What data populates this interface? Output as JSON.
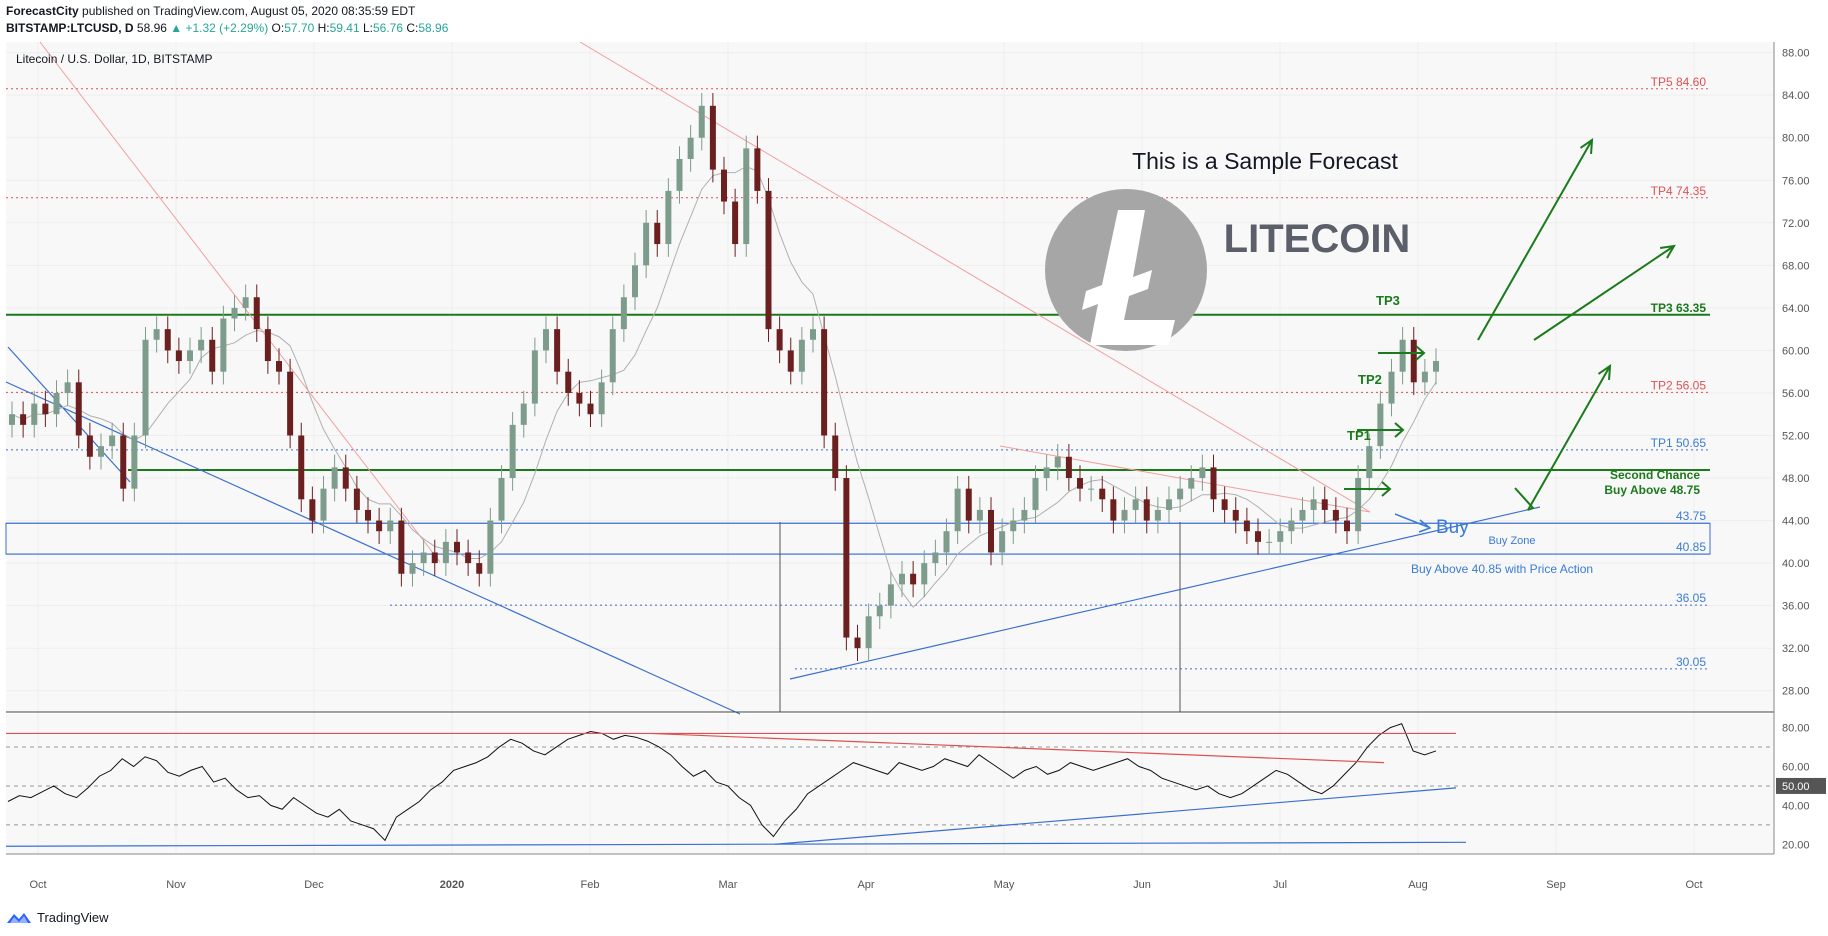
{
  "header": {
    "author": "ForecastCity",
    "published_text": "published on TradingView.com, August 05, 2020 08:35:59 EDT",
    "symbol": "BITSTAMP:LTCUSD, D",
    "last": "58.96",
    "change": "▲ +1.32 (+2.29%)",
    "o_label": "O:",
    "o_value": "57.70",
    "h_label": "H:",
    "h_value": "59.41",
    "l_label": "L:",
    "l_value": "56.76",
    "c_label": "C:",
    "c_value": "58.96"
  },
  "footer": {
    "brand": "TradingView"
  },
  "colors": {
    "up": "#7d9c8c",
    "down": "#6b1f1f",
    "green": "#1b7a1b",
    "red": "#e05050",
    "blue": "#2962ff",
    "trendblue": "#3a6fcf",
    "grey": "#b0b0b0",
    "pink": "#f0a0a0"
  },
  "chart_data": [
    {
      "type": "candlestick",
      "title": "Litecoin / U.S. Dollar, 1D, BITSTAMP",
      "xlabel": "",
      "ylabel": "",
      "x_ticks": [
        "Oct",
        "Nov",
        "Dec",
        "2020",
        "Feb",
        "Mar",
        "Apr",
        "May",
        "Jun",
        "Jul",
        "Aug",
        "Sep",
        "Oct"
      ],
      "y_ticks": [
        "88.00",
        "84.00",
        "80.00",
        "76.00",
        "72.00",
        "68.00",
        "64.00",
        "60.00",
        "56.00",
        "52.00",
        "48.00",
        "44.00",
        "40.00",
        "36.00",
        "32.00",
        "28.00"
      ],
      "ylim": [
        26,
        89
      ],
      "grid": true,
      "watermark_title": "This is a Sample Forecast",
      "watermark_brand": "LITECOIN",
      "levels": [
        {
          "label": "TP5 84.60",
          "value": 84.6,
          "style": "red-dotted"
        },
        {
          "label": "TP4 74.35",
          "value": 74.35,
          "style": "red-dotted"
        },
        {
          "label": "TP3 63.35",
          "value": 63.35,
          "style": "green-solid"
        },
        {
          "label": "TP2 56.05",
          "value": 56.05,
          "style": "red-dotted"
        },
        {
          "label": "TP1 50.65",
          "value": 50.65,
          "style": "blue-dotted"
        },
        {
          "label": "",
          "value": 48.75,
          "style": "green-solid"
        },
        {
          "label": "43.75",
          "value": 43.75,
          "style": "blue-solid"
        },
        {
          "label": "40.85",
          "value": 40.85,
          "style": "blue-solid"
        },
        {
          "label": "36.05",
          "value": 36.05,
          "style": "blue-dotted"
        },
        {
          "label": "30.05",
          "value": 30.05,
          "style": "blue-dotted"
        }
      ],
      "annotations": {
        "tp1": "TP1",
        "tp2": "TP2",
        "tp3": "TP3",
        "second_chance_1": "Second Chance",
        "second_chance_2": "Buy Above 48.75",
        "buy": "Buy",
        "buy_zone": "Buy Zone",
        "buy_above": "Buy Above  40.85 with Price Action"
      },
      "series": [
        {
          "ohlc_close_approx": [
            54,
            53,
            55,
            54,
            56,
            57,
            52,
            50,
            51,
            52,
            47,
            52,
            61,
            62,
            60,
            59,
            60,
            61,
            58,
            63,
            64,
            65,
            62,
            59,
            58,
            52,
            46,
            44,
            47,
            49,
            47,
            45,
            44,
            43,
            44,
            39,
            40,
            41,
            40,
            42,
            41,
            40,
            39,
            44,
            48,
            53,
            55,
            60,
            62,
            58,
            56,
            55,
            54,
            57,
            62,
            65,
            68,
            72,
            70,
            75,
            78,
            80,
            83,
            77,
            74,
            70,
            79,
            75,
            62,
            60,
            58,
            61,
            62,
            52,
            48,
            33,
            32,
            35,
            36,
            38,
            39,
            38,
            40,
            41,
            43,
            47,
            44,
            45,
            41,
            43,
            44,
            45,
            48,
            49,
            50,
            48,
            47,
            47,
            46,
            44,
            45,
            46,
            44,
            45,
            46,
            47,
            48,
            49,
            46,
            45,
            44,
            43,
            42,
            42,
            43,
            44,
            45,
            46,
            45,
            44,
            43,
            48,
            51,
            55,
            58,
            61,
            57,
            58,
            59
          ]
        }
      ]
    },
    {
      "type": "line",
      "title": "",
      "y_ticks": [
        "80.00",
        "60.00",
        "50.00",
        "40.00",
        "20.00"
      ],
      "ylim": [
        15,
        87
      ],
      "dashed_levels": [
        70,
        50,
        30
      ],
      "series": [
        {
          "values": [
            42,
            45,
            44,
            47,
            50,
            46,
            44,
            49,
            55,
            58,
            64,
            60,
            65,
            63,
            57,
            55,
            58,
            60,
            52,
            54,
            48,
            44,
            45,
            40,
            38,
            44,
            40,
            36,
            34,
            38,
            32,
            30,
            28,
            22,
            34,
            38,
            42,
            48,
            52,
            58,
            60,
            62,
            65,
            70,
            74,
            72,
            68,
            66,
            70,
            74,
            76,
            78,
            77,
            74,
            76,
            75,
            73,
            70,
            66,
            60,
            55,
            58,
            52,
            50,
            44,
            40,
            30,
            24,
            32,
            38,
            46,
            50,
            54,
            58,
            62,
            60,
            58,
            56,
            62,
            60,
            58,
            60,
            64,
            62,
            60,
            66,
            62,
            58,
            54,
            58,
            60,
            56,
            58,
            62,
            60,
            58,
            60,
            62,
            64,
            60,
            58,
            54,
            52,
            50,
            48,
            50,
            46,
            44,
            46,
            50,
            54,
            58,
            56,
            52,
            48,
            46,
            50,
            56,
            62,
            70,
            76,
            80,
            82,
            68,
            66,
            68
          ]
        }
      ]
    }
  ]
}
